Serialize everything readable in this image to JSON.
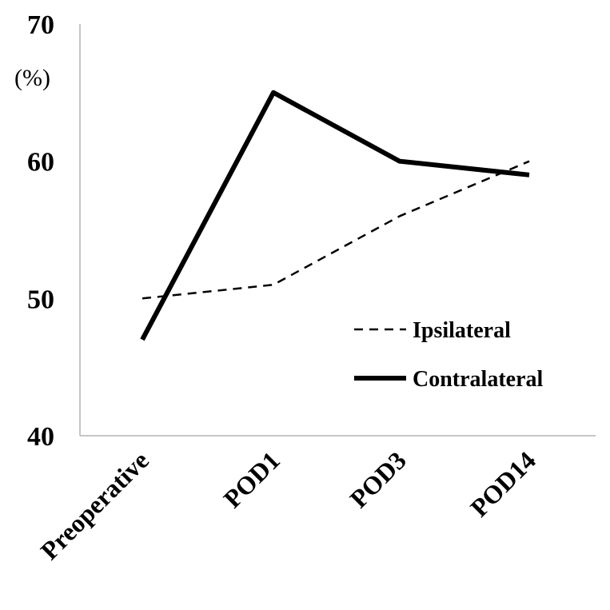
{
  "chart_data": {
    "type": "line",
    "title": "",
    "xlabel": "",
    "ylabel": "(%)",
    "ylim": [
      40,
      70
    ],
    "yticks": [
      "40",
      "50",
      "60",
      "70"
    ],
    "categories": [
      "Preoperative",
      "POD1",
      "POD3",
      "POD14"
    ],
    "grid": false,
    "legend_position": "lower-right",
    "series": [
      {
        "name": "Ipsilateral",
        "style": "dashed",
        "color": "#000000",
        "values": [
          50,
          51,
          56,
          60
        ]
      },
      {
        "name": "Contralateral",
        "style": "solid",
        "color": "#000000",
        "values": [
          47,
          65,
          60,
          59
        ]
      }
    ]
  }
}
